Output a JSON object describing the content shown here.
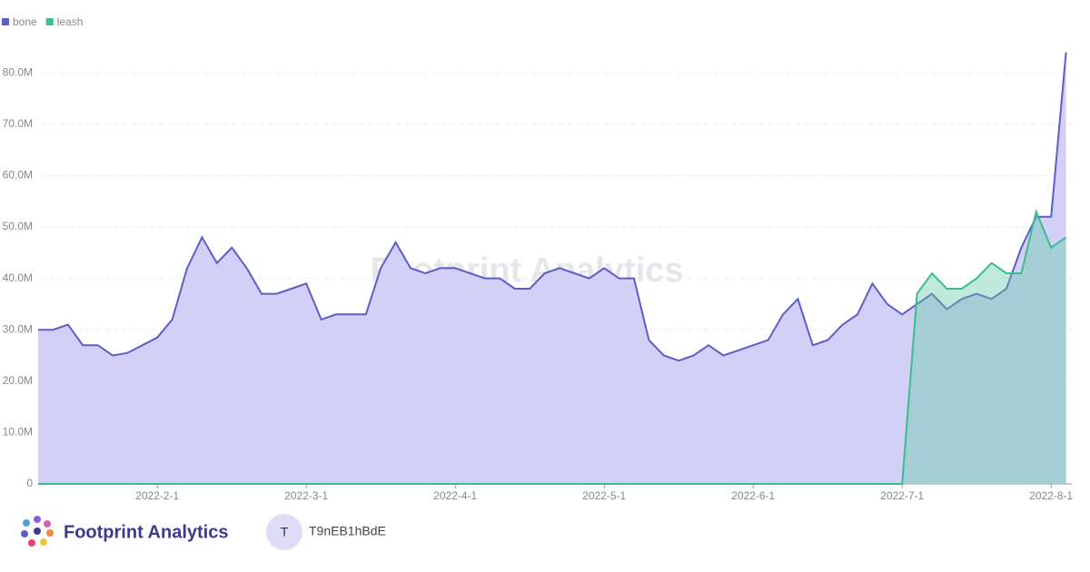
{
  "chart_data": {
    "type": "area",
    "watermark": "Footprint Analytics",
    "categories": [
      null,
      null,
      null,
      null,
      null,
      null,
      null,
      null,
      "2022-2-1",
      null,
      null,
      null,
      null,
      null,
      null,
      null,
      null,
      null,
      "2022-3-1",
      null,
      null,
      null,
      null,
      null,
      null,
      null,
      null,
      null,
      "2022-4-1",
      null,
      null,
      null,
      null,
      null,
      null,
      null,
      null,
      null,
      "2022-5-1",
      null,
      null,
      null,
      null,
      null,
      null,
      null,
      null,
      null,
      "2022-6-1",
      null,
      null,
      null,
      null,
      null,
      null,
      null,
      null,
      null,
      "2022-7-1",
      null,
      null,
      null,
      null,
      null,
      null,
      null,
      null,
      null,
      "2022-8-1",
      null
    ],
    "series": [
      {
        "name": "bone",
        "color": "#5b5fc7",
        "fill": "#d2d0f6",
        "values": [
          30,
          30,
          31,
          27,
          27,
          25,
          25.5,
          27,
          28.5,
          32,
          42,
          48,
          43,
          46,
          42,
          37,
          37,
          38,
          39,
          32,
          33,
          33,
          33,
          42,
          47,
          42,
          41,
          42,
          42,
          41,
          40,
          40,
          38,
          38,
          41,
          42,
          41,
          40,
          42,
          40,
          40,
          28,
          25,
          24,
          25,
          27,
          25,
          26,
          27,
          28,
          33,
          36,
          27,
          28,
          31,
          33,
          39,
          35,
          33,
          35,
          37,
          34,
          36,
          37,
          36,
          38,
          46,
          52,
          52,
          84
        ]
      },
      {
        "name": "leash",
        "color": "#3dbd8e",
        "fill": "#5ec9a4",
        "values": [
          0,
          0,
          0,
          0,
          0,
          0,
          0,
          0,
          0,
          0,
          0,
          0,
          0,
          0,
          0,
          0,
          0,
          0,
          0,
          0,
          0,
          0,
          0,
          0,
          0,
          0,
          0,
          0,
          0,
          0,
          0,
          0,
          0,
          0,
          0,
          0,
          0,
          0,
          0,
          0,
          0,
          0,
          0,
          0,
          0,
          0,
          0,
          0,
          0,
          0,
          0,
          0,
          0,
          0,
          0,
          0,
          0,
          0,
          0,
          37,
          41,
          38,
          38,
          40,
          43,
          41,
          41,
          53,
          46,
          48
        ]
      }
    ],
    "ylim": [
      0,
      85
    ],
    "yticks": [
      0,
      {
        "value": 10,
        "label": "10.0M"
      },
      {
        "value": 20,
        "label": "20.0M"
      },
      {
        "value": 30,
        "label": "30.0M"
      },
      {
        "value": 40,
        "label": "40.0M"
      },
      {
        "value": 50,
        "label": "50.0M"
      },
      {
        "value": 60,
        "label": "60.0M"
      },
      {
        "value": 70,
        "label": "70.0M"
      },
      {
        "value": 80,
        "label": "80.0M"
      }
    ],
    "grid": true
  },
  "footer": {
    "brand": "Footprint Analytics",
    "avatar": "T",
    "user": "T9nEB1hBdE"
  }
}
